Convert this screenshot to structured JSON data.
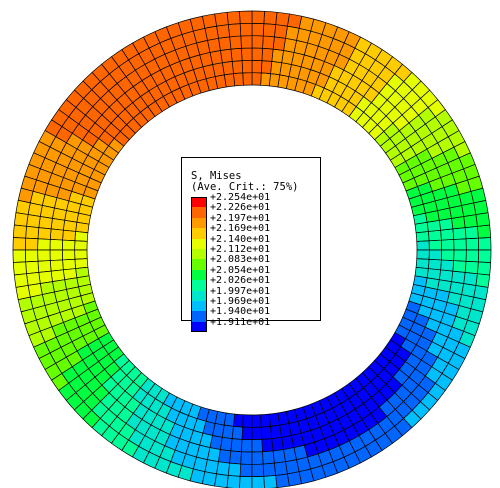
{
  "legend": {
    "title": "S, Mises",
    "subtitle": "(Ave. Crit.: 75%)",
    "ticks": [
      "+2.254e+01",
      "+2.226e+01",
      "+2.197e+01",
      "+2.169e+01",
      "+2.140e+01",
      "+2.112e+01",
      "+2.083e+01",
      "+2.054e+01",
      "+2.026e+01",
      "+1.997e+01",
      "+1.969e+01",
      "+1.940e+01",
      "+1.911e+01"
    ],
    "band_colors": [
      "#ff0000",
      "#ff6600",
      "#ff9900",
      "#ffcc00",
      "#e6ff00",
      "#b3ff00",
      "#66ff00",
      "#00ff40",
      "#00ff99",
      "#00e6cc",
      "#00bfff",
      "#0066ff",
      "#0000ff"
    ]
  },
  "field": {
    "min": 19.11,
    "max": 22.54,
    "radial_divisions": 6,
    "circumferential_divisions": 120
  }
}
